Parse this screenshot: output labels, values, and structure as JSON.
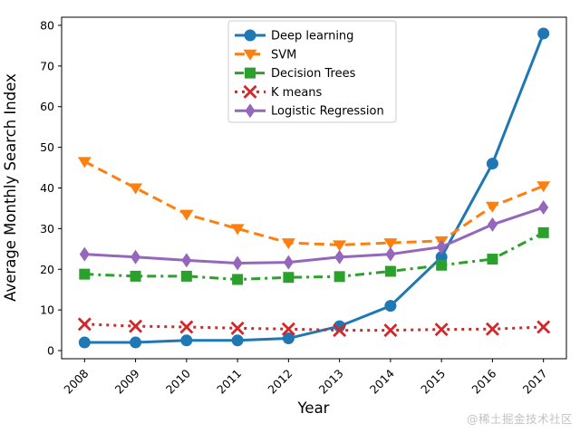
{
  "page": {
    "watermark": "@稀土掘金技术社区"
  },
  "chart_data": {
    "type": "line",
    "title": "",
    "xlabel": "Year",
    "ylabel": "Average Monthly Search Index",
    "x": [
      2008,
      2009,
      2010,
      2011,
      2012,
      2013,
      2014,
      2015,
      2016,
      2017
    ],
    "x_tick_labels": [
      "2008",
      "2009",
      "2010",
      "2011",
      "2012",
      "2013",
      "2014",
      "2015",
      "2016",
      "2017"
    ],
    "yticks": [
      0,
      10,
      20,
      30,
      40,
      50,
      60,
      70,
      80
    ],
    "xlim": [
      2007.55,
      2017.45
    ],
    "ylim": [
      -2,
      82
    ],
    "grid": false,
    "legend_position": "upper center",
    "series": [
      {
        "name": "Deep learning",
        "color": "#1f77b4",
        "linestyle": "solid",
        "marker": "circle",
        "values": [
          2,
          2,
          2.5,
          2.5,
          3,
          6,
          11,
          23,
          46,
          78
        ]
      },
      {
        "name": "SVM",
        "color": "#ff7f0e",
        "linestyle": "dashed",
        "marker": "triangle-down",
        "values": [
          46.5,
          40,
          33.5,
          30,
          26.5,
          26,
          26.5,
          27,
          35.5,
          40.5
        ]
      },
      {
        "name": "Decision Trees",
        "color": "#2ca02c",
        "linestyle": "dashdot",
        "marker": "square",
        "values": [
          18.8,
          18.3,
          18.3,
          17.5,
          18,
          18.2,
          19.5,
          21,
          22.5,
          29
        ]
      },
      {
        "name": "K means",
        "color": "#d62728",
        "linestyle": "dotted",
        "marker": "x",
        "values": [
          6.5,
          6,
          5.8,
          5.5,
          5.3,
          5,
          5,
          5.2,
          5.3,
          5.8
        ]
      },
      {
        "name": "Logistic Regression",
        "color": "#9467bd",
        "linestyle": "solid",
        "marker": "diamond",
        "values": [
          23.7,
          23,
          22.2,
          21.5,
          21.7,
          23,
          23.7,
          25.5,
          31,
          35.2
        ]
      }
    ]
  }
}
